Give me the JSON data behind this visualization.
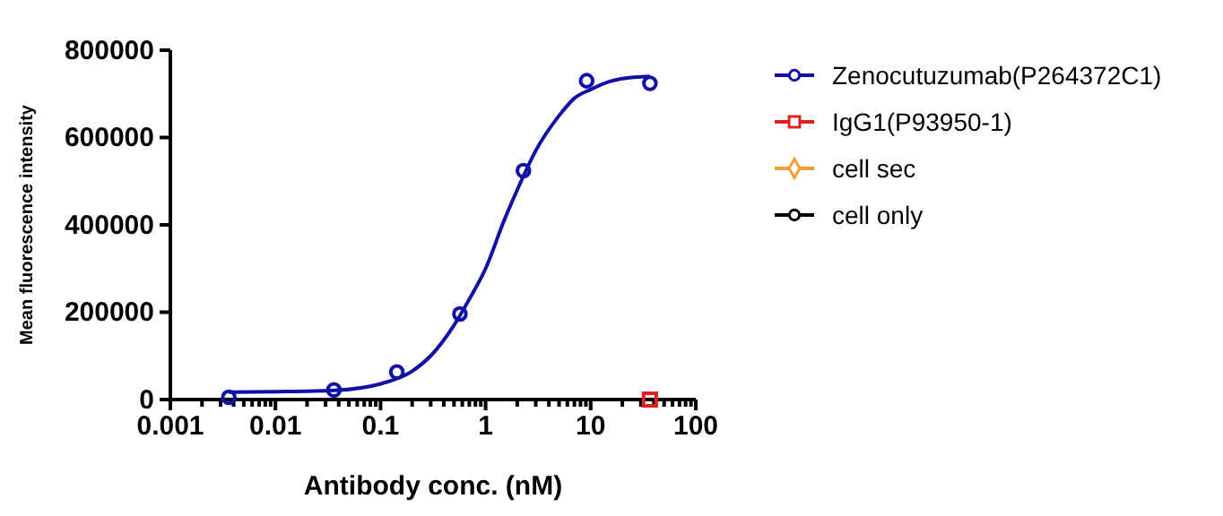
{
  "chart_data": {
    "type": "scatter",
    "xlabel": "Antibody conc. (nM)",
    "ylabel": "Mean fluorescence intensity",
    "log": "x",
    "xlim": [
      0.001,
      100
    ],
    "xticks": [
      0.001,
      0.01,
      0.1,
      1,
      10,
      100
    ],
    "ylim": [
      0,
      800000
    ],
    "yticks": [
      0,
      200000,
      400000,
      600000,
      800000
    ],
    "grid": false,
    "legend": "right",
    "series": [
      {
        "name": "Zenocutuzumab(P264372C1)",
        "color": "#1010a8",
        "marker": "circle",
        "x": [
          0.0036,
          0.036,
          0.143,
          0.57,
          2.29,
          9.15,
          36.6
        ],
        "values": [
          5000,
          22000,
          63000,
          196000,
          524000,
          730000,
          724000
        ]
      },
      {
        "color": "#1010a8",
        "type": "line",
        "marker": "none",
        "x": [
          0.0036,
          0.01,
          0.036,
          0.1,
          0.2,
          0.3,
          0.5,
          0.7,
          1,
          1.5,
          2,
          3,
          5,
          7,
          10,
          15,
          20,
          36.6
        ],
        "values": [
          17000,
          18000,
          21000,
          36000,
          65000,
          100000,
          170000,
          230000,
          300000,
          410000,
          480000,
          570000,
          650000,
          690000,
          710000,
          728000,
          735000,
          740000
        ]
      },
      {
        "name": "IgG1(P93950-1)",
        "color": "#e02020",
        "marker": "square",
        "x": [
          36.6
        ],
        "values": [
          0
        ]
      },
      {
        "name": "cell sec",
        "color": "#f0a030",
        "marker": "diamond"
      },
      {
        "name": "cell only",
        "color": "#000000",
        "marker": "circle"
      }
    ]
  }
}
